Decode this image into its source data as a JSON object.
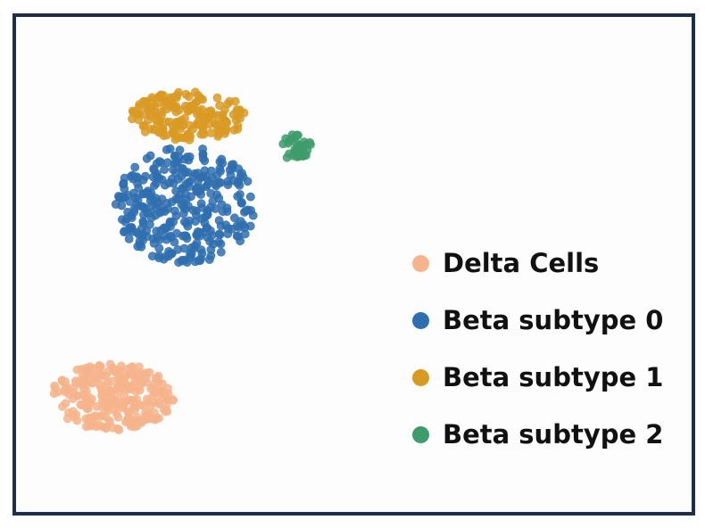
{
  "chart_data": {
    "type": "scatter",
    "title": "",
    "xlabel": "",
    "ylabel": "",
    "axes_visible": false,
    "grid": false,
    "legend_position": "right",
    "series": [
      {
        "name": "Delta Cells",
        "color": "#F6B48C",
        "n_points": 260,
        "center": [
          -7.5,
          -6.0
        ],
        "spread": [
          3.6,
          1.5
        ]
      },
      {
        "name": "Beta subtype 0",
        "color": "#2F6FAF",
        "n_points": 330,
        "center": [
          -3.2,
          2.6
        ],
        "spread": [
          4.1,
          2.6
        ]
      },
      {
        "name": "Beta subtype 1",
        "color": "#D99A24",
        "n_points": 170,
        "center": [
          -3.0,
          6.6
        ],
        "spread": [
          3.4,
          1.1
        ]
      },
      {
        "name": "Beta subtype 2",
        "color": "#3E9C6C",
        "n_points": 35,
        "center": [
          3.3,
          5.2
        ],
        "spread": [
          0.9,
          0.6
        ]
      }
    ]
  },
  "legend": {
    "items": [
      {
        "label": "Delta Cells",
        "color": "#F6B48C"
      },
      {
        "label": "Beta subtype 0",
        "color": "#2F6FAF"
      },
      {
        "label": "Beta subtype 1",
        "color": "#D99A24"
      },
      {
        "label": "Beta subtype 2",
        "color": "#3E9C6C"
      }
    ]
  }
}
